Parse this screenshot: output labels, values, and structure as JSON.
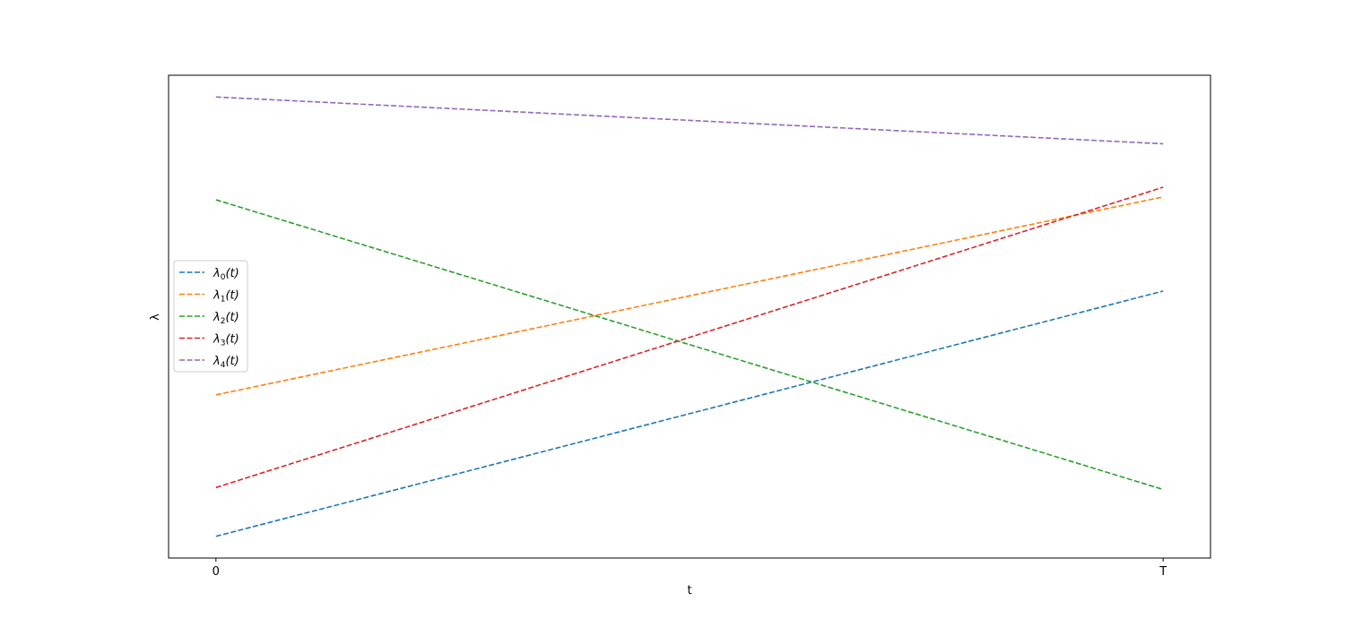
{
  "chart_data": {
    "type": "line",
    "xlabel": "t",
    "ylabel": "λ",
    "xlim": [
      -0.05,
      1.05
    ],
    "ylim": [
      0.0,
      1.0
    ],
    "x_ticks": [
      {
        "value": 0,
        "label": "0"
      },
      {
        "value": 1,
        "label": "T"
      }
    ],
    "y_ticks_visible": false,
    "grid": false,
    "legend_position": "center-left",
    "line_style": "dashed",
    "series": [
      {
        "name": "λ0(t)",
        "base": "λ",
        "sub": "0",
        "arg": "(t)",
        "color": "#1f77b4",
        "x": [
          0,
          1
        ],
        "y": [
          0.045,
          0.553
        ]
      },
      {
        "name": "λ1(t)",
        "base": "λ",
        "sub": "1",
        "arg": "(t)",
        "color": "#ff7f0e",
        "x": [
          0,
          1
        ],
        "y": [
          0.338,
          0.748
        ]
      },
      {
        "name": "λ2(t)",
        "base": "λ",
        "sub": "2",
        "arg": "(t)",
        "color": "#2ca02c",
        "x": [
          0,
          1
        ],
        "y": [
          0.742,
          0.142
        ]
      },
      {
        "name": "λ3(t)",
        "base": "λ",
        "sub": "3",
        "arg": "(t)",
        "color": "#d62728",
        "x": [
          0,
          1
        ],
        "y": [
          0.146,
          0.768
        ]
      },
      {
        "name": "λ4(t)",
        "base": "λ",
        "sub": "4",
        "arg": "(t)",
        "color": "#9467bd",
        "x": [
          0,
          1
        ],
        "y": [
          0.955,
          0.858
        ]
      }
    ]
  }
}
